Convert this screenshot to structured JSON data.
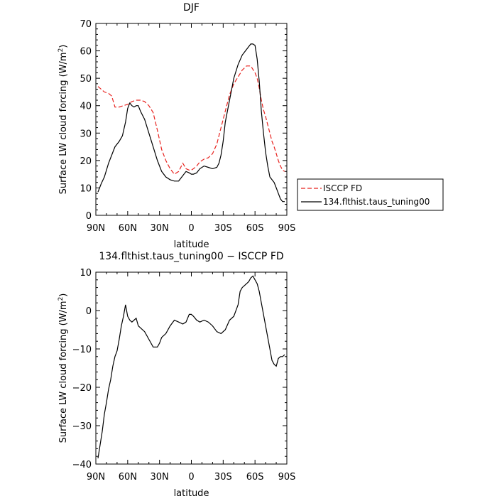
{
  "chart_data": [
    {
      "type": "line",
      "title": "DJF",
      "xlabel": "latitude",
      "ylabel": "Surface LW cloud forcing (W/m",
      "ylabel_sup": "2",
      "ylabel_close": ")",
      "xlim": [
        90,
        -90
      ],
      "ylim": [
        0,
        70
      ],
      "xticks": [
        90,
        60,
        30,
        0,
        -30,
        -60,
        -90
      ],
      "xtick_labels": [
        "90N",
        "60N",
        "30N",
        "0",
        "30S",
        "60S",
        "90S"
      ],
      "yticks": [
        0,
        10,
        20,
        30,
        40,
        50,
        60,
        70
      ],
      "ytick_labels": [
        "0",
        "10",
        "20",
        "30",
        "40",
        "50",
        "60",
        "70"
      ],
      "grid": false,
      "legend_position": "right",
      "series": [
        {
          "name": "ISCCP FD",
          "color": "#e8231f",
          "dash": "dashed",
          "x": [
            88,
            85,
            82,
            78,
            75,
            72,
            68,
            64,
            60,
            56,
            52,
            48,
            44,
            40,
            36,
            32,
            28,
            24,
            20,
            16,
            12,
            8,
            5,
            2,
            0,
            -2,
            -5,
            -8,
            -12,
            -16,
            -20,
            -24,
            -28,
            -32,
            -36,
            -40,
            -44,
            -48,
            -52,
            -56,
            -60,
            -62,
            -64,
            -66,
            -68,
            -70,
            -72,
            -74,
            -76,
            -78,
            -80,
            -82,
            -84,
            -86,
            -88
          ],
          "y": [
            47,
            46,
            45,
            44.5,
            43.5,
            39.5,
            39.5,
            40,
            40.5,
            41.5,
            42,
            42,
            41.5,
            40,
            37.5,
            31,
            24,
            20,
            17,
            15,
            16,
            19,
            17,
            16.5,
            16.5,
            17,
            18,
            19.5,
            20.5,
            21,
            22.5,
            26,
            32,
            38,
            44,
            48,
            50.5,
            53,
            54.5,
            54.5,
            52,
            50,
            46.5,
            42,
            38.5,
            36,
            33,
            30,
            27,
            25,
            22.5,
            20,
            18,
            16.5,
            16
          ]
        },
        {
          "name": "134.flthist.taus_tuning00",
          "color": "#000000",
          "dash": "solid",
          "x": [
            88,
            85,
            82,
            78,
            75,
            72,
            68,
            65,
            62,
            60,
            58,
            56,
            54,
            52,
            50,
            48,
            44,
            40,
            36,
            32,
            28,
            24,
            20,
            16,
            12,
            8,
            5,
            2,
            0,
            -2,
            -5,
            -8,
            -12,
            -16,
            -20,
            -24,
            -26,
            -28,
            -30,
            -32,
            -36,
            -40,
            -44,
            -48,
            -52,
            -56,
            -58,
            -60,
            -62,
            -64,
            -66,
            -68,
            -70,
            -72,
            -74,
            -76,
            -78,
            -80,
            -82,
            -84,
            -86,
            -88
          ],
          "y": [
            8.5,
            11.5,
            14,
            19,
            22,
            25,
            27,
            29,
            34,
            39,
            41,
            40,
            39.5,
            40,
            40,
            38,
            35,
            30,
            25,
            20,
            16,
            14,
            13,
            12.5,
            12.5,
            14.5,
            16,
            15.5,
            15,
            15,
            15.5,
            17,
            18,
            17.5,
            17,
            17.5,
            19,
            22,
            27,
            34,
            42,
            50,
            55,
            58.5,
            60.5,
            62.5,
            62.5,
            62,
            57,
            49,
            38,
            30,
            23,
            18,
            14,
            13,
            12,
            10,
            8,
            6,
            5,
            5
          ]
        }
      ]
    },
    {
      "type": "line",
      "title": "134.flthist.taus_tuning00 − ISCCP FD",
      "xlabel": "latitude",
      "ylabel": "Surface LW cloud forcing (W/m",
      "ylabel_sup": "2",
      "ylabel_close": ")",
      "xlim": [
        90,
        -90
      ],
      "ylim": [
        -40,
        10
      ],
      "xticks": [
        90,
        60,
        30,
        0,
        -30,
        -60,
        -90
      ],
      "xtick_labels": [
        "90N",
        "60N",
        "30N",
        "0",
        "30S",
        "60S",
        "90S"
      ],
      "yticks": [
        -40,
        -30,
        -20,
        -10,
        0,
        10
      ],
      "ytick_labels": [
        "−40",
        "−30",
        "−20",
        "−10",
        "0",
        "10"
      ],
      "grid": false,
      "series": [
        {
          "color": "#000000",
          "dash": "solid",
          "x": [
            88,
            86,
            84,
            82,
            80,
            78,
            76,
            74,
            72,
            70,
            68,
            66,
            64,
            62,
            60,
            58,
            56,
            54,
            52,
            50,
            48,
            44,
            40,
            36,
            32,
            30,
            28,
            24,
            20,
            16,
            12,
            8,
            5,
            2,
            0,
            -2,
            -5,
            -8,
            -12,
            -16,
            -20,
            -24,
            -28,
            -32,
            -36,
            -40,
            -44,
            -46,
            -48,
            -50,
            -52,
            -54,
            -56,
            -58,
            -60,
            -62,
            -64,
            -66,
            -68,
            -70,
            -72,
            -74,
            -76,
            -78,
            -80,
            -82,
            -84,
            -86,
            -88
          ],
          "y": [
            -38.5,
            -35,
            -31.5,
            -27,
            -24,
            -20.5,
            -18,
            -14.5,
            -12,
            -10.5,
            -7.5,
            -4,
            -1.5,
            1.5,
            -1.5,
            -2.5,
            -3,
            -2.5,
            -2,
            -4,
            -4.5,
            -5.5,
            -7.5,
            -9.5,
            -9.5,
            -8.5,
            -7,
            -6,
            -4,
            -2.5,
            -3,
            -3.5,
            -3,
            -1,
            -1,
            -1.5,
            -2.5,
            -3,
            -2.5,
            -3,
            -4,
            -5.5,
            -6,
            -5,
            -2.5,
            -1.5,
            1.5,
            5,
            6,
            6.5,
            7,
            7.5,
            8.5,
            9,
            8,
            7,
            5,
            2,
            -1,
            -4,
            -7,
            -10,
            -13,
            -14,
            -14.5,
            -12.5,
            -12,
            -12,
            -11.5
          ]
        }
      ]
    }
  ]
}
